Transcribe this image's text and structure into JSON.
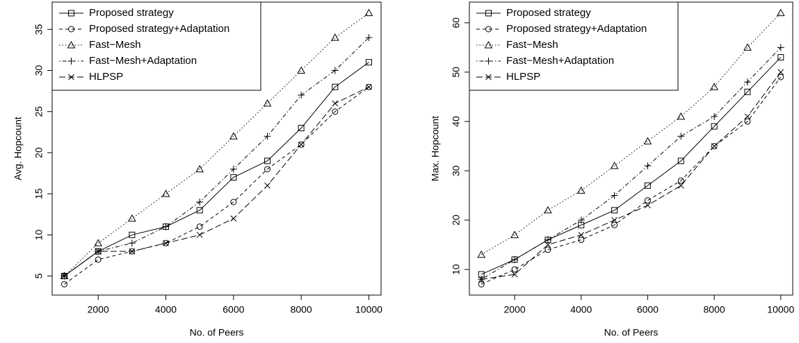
{
  "chart_data": [
    {
      "type": "line",
      "x_label": "No. of Peers",
      "y_label": "Avg. Hopcount",
      "x": [
        1000,
        2000,
        3000,
        4000,
        5000,
        6000,
        7000,
        8000,
        9000,
        10000
      ],
      "xlim": [
        640,
        10360
      ],
      "xticks": [
        2000,
        4000,
        6000,
        8000,
        10000
      ],
      "ylim": [
        2.68,
        38.32
      ],
      "yticks": [
        5,
        10,
        15,
        20,
        25,
        30,
        35
      ],
      "legend": "top-left",
      "series": [
        {
          "name": "Proposed strategy",
          "color": "#000000",
          "marker": "square",
          "dash": "solid",
          "values": [
            5,
            8,
            10,
            11,
            13,
            17,
            19,
            23,
            28,
            31
          ]
        },
        {
          "name": "Proposed strategy+Adaptation",
          "color": "#000000",
          "marker": "circle",
          "dash": "dashed",
          "values": [
            4,
            7,
            8,
            9,
            11,
            14,
            18,
            21,
            25,
            28
          ]
        },
        {
          "name": "Fast−Mesh",
          "color": "#000000",
          "marker": "triangle",
          "dash": "dotted",
          "values": [
            5,
            9,
            12,
            15,
            18,
            22,
            26,
            30,
            34,
            37
          ]
        },
        {
          "name": "Fast−Mesh+Adaptation",
          "color": "#000000",
          "marker": "plus",
          "dash": "dotdash",
          "values": [
            5,
            8,
            9,
            11,
            14,
            18,
            22,
            27,
            30,
            34
          ]
        },
        {
          "name": "HLPSP",
          "color": "#000000",
          "marker": "cross",
          "dash": "longdash",
          "values": [
            5,
            8,
            8,
            9,
            10,
            12,
            16,
            21,
            26,
            28
          ]
        }
      ]
    },
    {
      "type": "line",
      "x_label": "No. of Peers",
      "y_label": "Max. Hopcount",
      "x": [
        1000,
        2000,
        3000,
        4000,
        5000,
        6000,
        7000,
        8000,
        9000,
        10000
      ],
      "xlim": [
        640,
        10360
      ],
      "xticks": [
        2000,
        4000,
        6000,
        8000,
        10000
      ],
      "ylim": [
        4.8,
        64.2
      ],
      "yticks": [
        10,
        20,
        30,
        40,
        50,
        60
      ],
      "legend": "top-left",
      "series": [
        {
          "name": "Proposed strategy",
          "color": "#000000",
          "marker": "square",
          "dash": "solid",
          "values": [
            9,
            12,
            16,
            19,
            22,
            27,
            32,
            39,
            46,
            53
          ]
        },
        {
          "name": "Proposed strategy+Adaptation",
          "color": "#000000",
          "marker": "circle",
          "dash": "dashed",
          "values": [
            7,
            10,
            14,
            16,
            19,
            24,
            28,
            35,
            40,
            49
          ]
        },
        {
          "name": "Fast−Mesh",
          "color": "#000000",
          "marker": "triangle",
          "dash": "dotted",
          "values": [
            13,
            17,
            22,
            26,
            31,
            36,
            41,
            47,
            55,
            62
          ]
        },
        {
          "name": "Fast−Mesh+Adaptation",
          "color": "#000000",
          "marker": "plus",
          "dash": "dotdash",
          "values": [
            8,
            12,
            16,
            20,
            25,
            31,
            37,
            41,
            48,
            55
          ]
        },
        {
          "name": "HLPSP",
          "color": "#000000",
          "marker": "cross",
          "dash": "longdash",
          "values": [
            8,
            9,
            15,
            17,
            20,
            23,
            27,
            35,
            41,
            50
          ]
        }
      ]
    }
  ]
}
